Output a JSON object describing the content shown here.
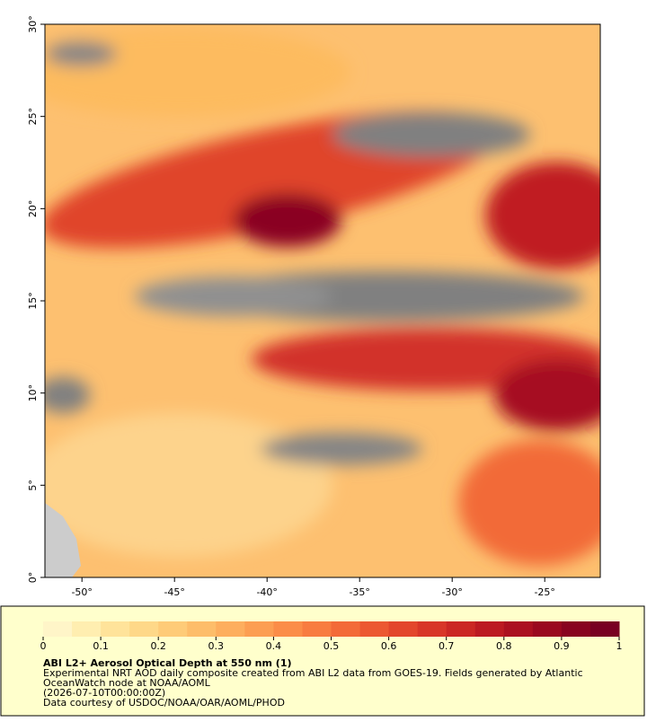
{
  "map": {
    "xlim": [
      -52,
      -22
    ],
    "ylim": [
      0,
      30
    ],
    "xticks": [
      {
        "value": -50,
        "label": "-50°"
      },
      {
        "value": -45,
        "label": "-45°"
      },
      {
        "value": -40,
        "label": "-40°"
      },
      {
        "value": -35,
        "label": "-35°"
      },
      {
        "value": -30,
        "label": "-30°"
      },
      {
        "value": -25,
        "label": "-25°"
      }
    ],
    "yticks": [
      {
        "value": 0,
        "label": "0°"
      },
      {
        "value": 5,
        "label": "5°"
      },
      {
        "value": 10,
        "label": "10°"
      },
      {
        "value": 15,
        "label": "15°"
      },
      {
        "value": 20,
        "label": "20°"
      },
      {
        "value": 25,
        "label": "25°"
      },
      {
        "value": 30,
        "label": "30°"
      }
    ]
  },
  "legend": {
    "title": "ABI L2+ Aerosol Optical Depth at 550 nm (1)",
    "description": [
      "Experimental NRT AOD daily composite created from ABI L2 data from GOES-19. Fields generated by Atlantic",
      "OceanWatch node at NOAA/AOML"
    ],
    "date": "(2026-07-10T00:00:00Z)",
    "credit": "Data courtesy of USDOC/NOAA/OAR/AOML/PHOD",
    "colorbar": {
      "lim": [
        0,
        1
      ],
      "ticks": [
        0,
        0.1,
        0.2,
        0.3,
        0.4,
        0.5,
        0.6,
        0.7,
        0.8,
        0.9,
        1
      ],
      "colors": [
        "#fff5c8",
        "#ffeeb0",
        "#ffe39a",
        "#fed888",
        "#fecb78",
        "#fdbd6a",
        "#fdae5e",
        "#fc9e52",
        "#fb8d48",
        "#f87c40",
        "#f36a38",
        "#ec5832",
        "#e3462c",
        "#d83628",
        "#cb2724",
        "#bc1a22",
        "#ab1020",
        "#9a081f",
        "#88031f",
        "#780022"
      ]
    }
  }
}
